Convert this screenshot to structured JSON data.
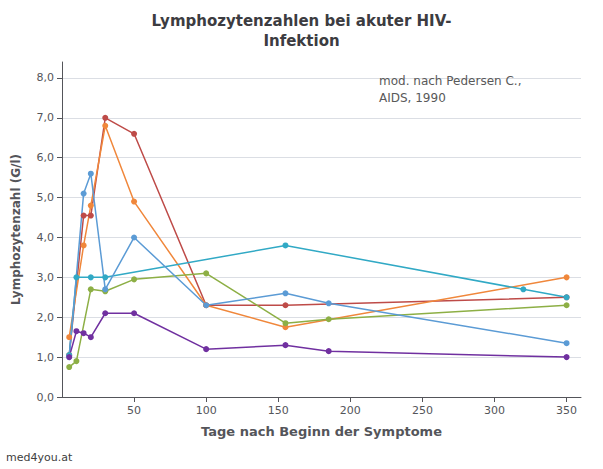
{
  "chart_data": {
    "type": "line",
    "title": "Lymphozytenzahlen bei akuter HIV-\nInfektion",
    "x_label": "Tage nach Beginn der Symptome",
    "y_label": "Lymphozytenzahl (G/l)",
    "annotations": [
      "mod. nach Pedersen C.,\nAIDS, 1990",
      "med4you.at"
    ],
    "xlim": [
      0,
      360
    ],
    "ylim": [
      0.0,
      8.4
    ],
    "xticks": [
      50,
      100,
      150,
      200,
      250,
      300,
      350
    ],
    "yticks": [
      {
        "value": 0.0,
        "label": "0,0"
      },
      {
        "value": 1.0,
        "label": "1,0"
      },
      {
        "value": 2.0,
        "label": "2,0"
      },
      {
        "value": 3.0,
        "label": "3,0"
      },
      {
        "value": 4.0,
        "label": "4,0"
      },
      {
        "value": 5.0,
        "label": "5,0"
      },
      {
        "value": 6.0,
        "label": "6,0"
      },
      {
        "value": 7.0,
        "label": "7,0"
      },
      {
        "value": 8.0,
        "label": "8,0"
      }
    ],
    "grid": "y",
    "marker": "circle",
    "series": [
      {
        "color": "#BE4B48",
        "x": [
          5,
          15,
          20,
          30,
          50,
          100,
          155,
          350
        ],
        "values": [
          1.05,
          4.55,
          4.55,
          7.0,
          6.6,
          2.3,
          2.3,
          2.5
        ]
      },
      {
        "color": "#F0873B",
        "x": [
          5,
          15,
          20,
          30,
          50,
          100,
          155,
          350
        ],
        "values": [
          1.5,
          3.8,
          4.8,
          6.8,
          4.9,
          2.3,
          1.75,
          3.0
        ]
      },
      {
        "color": "#8DAF45",
        "x": [
          5,
          10,
          20,
          30,
          50,
          100,
          155,
          185,
          350
        ],
        "values": [
          0.75,
          0.9,
          2.7,
          2.65,
          2.95,
          3.1,
          1.85,
          1.95,
          2.3
        ]
      },
      {
        "color": "#31A9C5",
        "x": [
          5,
          10,
          20,
          30,
          155,
          320,
          350
        ],
        "values": [
          1.05,
          3.0,
          3.0,
          3.0,
          3.8,
          2.7,
          2.5
        ]
      },
      {
        "color": "#5B9BD5",
        "x": [
          5,
          15,
          20,
          30,
          50,
          100,
          155,
          185,
          350
        ],
        "values": [
          1.0,
          5.1,
          5.6,
          2.7,
          4.0,
          2.3,
          2.6,
          2.35,
          1.35
        ]
      },
      {
        "color": "#7030A0",
        "x": [
          5,
          10,
          15,
          20,
          30,
          50,
          100,
          155,
          185,
          350
        ],
        "values": [
          1.0,
          1.65,
          1.6,
          1.5,
          2.1,
          2.1,
          1.2,
          1.3,
          1.15,
          1.0
        ]
      }
    ]
  }
}
